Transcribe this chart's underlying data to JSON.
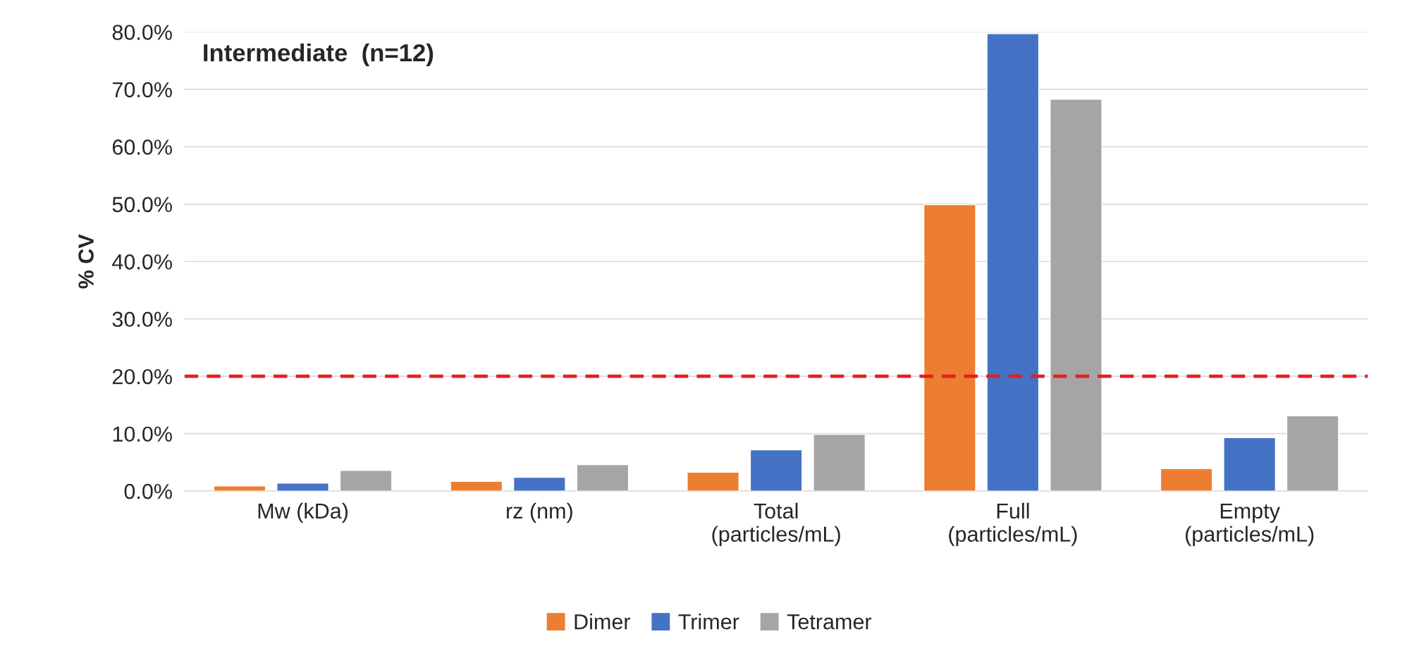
{
  "chart_data": {
    "type": "bar",
    "title": "Intermediate  (n=12)",
    "ylabel": "% CV",
    "categories": [
      "Mw (kDa)",
      "rz (nm)",
      "Total\n(particles/mL)",
      "Full\n(particles/mL)",
      "Empty\n(particles/mL)"
    ],
    "series": [
      {
        "name": "Dimer",
        "color": "#ed7d31",
        "values": [
          0.9,
          1.7,
          3.3,
          49.9,
          3.9
        ]
      },
      {
        "name": "Trimer",
        "color": "#4472c4",
        "values": [
          1.4,
          2.4,
          7.2,
          79.7,
          9.3
        ]
      },
      {
        "name": "Tetramer",
        "color": "#a5a5a5",
        "values": [
          3.6,
          4.6,
          9.9,
          68.3,
          13.1
        ]
      }
    ],
    "ylim": [
      0,
      80
    ],
    "yticks": [
      {
        "value": 0,
        "label": "0.0%"
      },
      {
        "value": 10,
        "label": "10.0%"
      },
      {
        "value": 20,
        "label": "20.0%"
      },
      {
        "value": 30,
        "label": "30.0%"
      },
      {
        "value": 40,
        "label": "40.0%"
      },
      {
        "value": 50,
        "label": "50.0%"
      },
      {
        "value": 60,
        "label": "60.0%"
      },
      {
        "value": 70,
        "label": "70.0%"
      },
      {
        "value": 80,
        "label": "80.0%"
      }
    ],
    "ref_lines": [
      {
        "axis": "y",
        "value": 20,
        "color": "#e81e1e",
        "line_style": "dashed"
      }
    ],
    "grid": "y",
    "legend": "bottom"
  }
}
